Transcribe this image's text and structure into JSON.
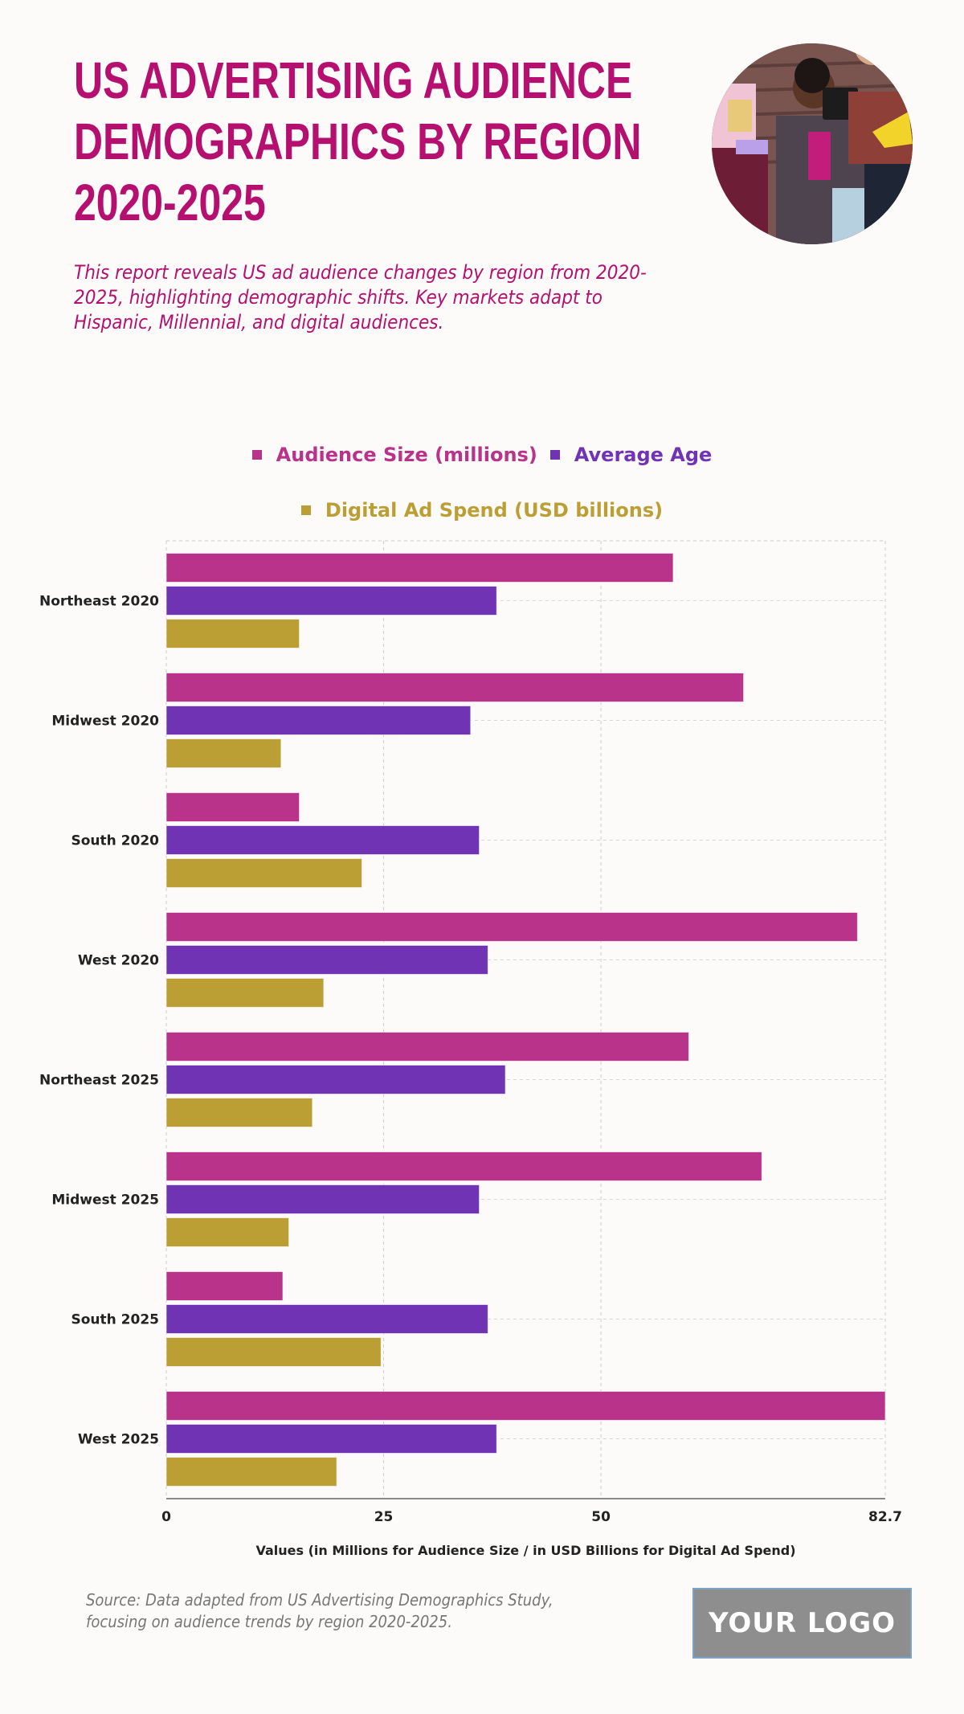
{
  "header": {
    "title": "US ADVERTISING AUDIENCE DEMOGRAPHICS BY REGION 2020-2025",
    "subtitle": "This report reveals US ad audience changes by region from 2020-2025, highlighting demographic shifts. Key markets adapt to Hispanic, Millennial, and digital audiences.",
    "photo_alt": "Group of young people sitting on steps holding tablets"
  },
  "colors": {
    "title": "#b5106f",
    "audience": "#b83389",
    "age": "#7033b4",
    "digital": "#bc9f34",
    "background": "#fcfbfa"
  },
  "chart_data": {
    "type": "bar",
    "orientation": "horizontal",
    "title": "",
    "categories": [
      "Northeast 2020",
      "Midwest 2020",
      "South 2020",
      "West 2020",
      "Northeast 2025",
      "Midwest 2025",
      "South 2025",
      "West 2025"
    ],
    "series": [
      {
        "name": "Audience Size (millions)",
        "color": "#b83389",
        "values": [
          58.3,
          66.4,
          15.3,
          79.5,
          60.1,
          68.5,
          13.4,
          82.7
        ]
      },
      {
        "name": "Average Age",
        "color": "#7033b4",
        "values": [
          38,
          35,
          36,
          37,
          39,
          36,
          37,
          38
        ]
      },
      {
        "name": "Digital Ad Spend (USD billions)",
        "color": "#bc9f34",
        "values": [
          15.3,
          13.2,
          22.5,
          18.1,
          16.8,
          14.1,
          24.7,
          19.6
        ]
      }
    ],
    "xlabel": "Values (in Millions for Audience Size / in USD Billions for Digital Ad Spend)",
    "ylabel": "",
    "xlim": [
      0,
      82.7
    ],
    "xticks": [
      "0",
      "25",
      "50",
      "82.7"
    ],
    "xtick_values": [
      0,
      25,
      50,
      82.7
    ],
    "grid": true,
    "legend_position": "top-center"
  },
  "footer": {
    "source": "Source: Data adapted from US Advertising Demographics Study, focusing on audience trends by region 2020-2025.",
    "logo": "YOUR LOGO"
  }
}
